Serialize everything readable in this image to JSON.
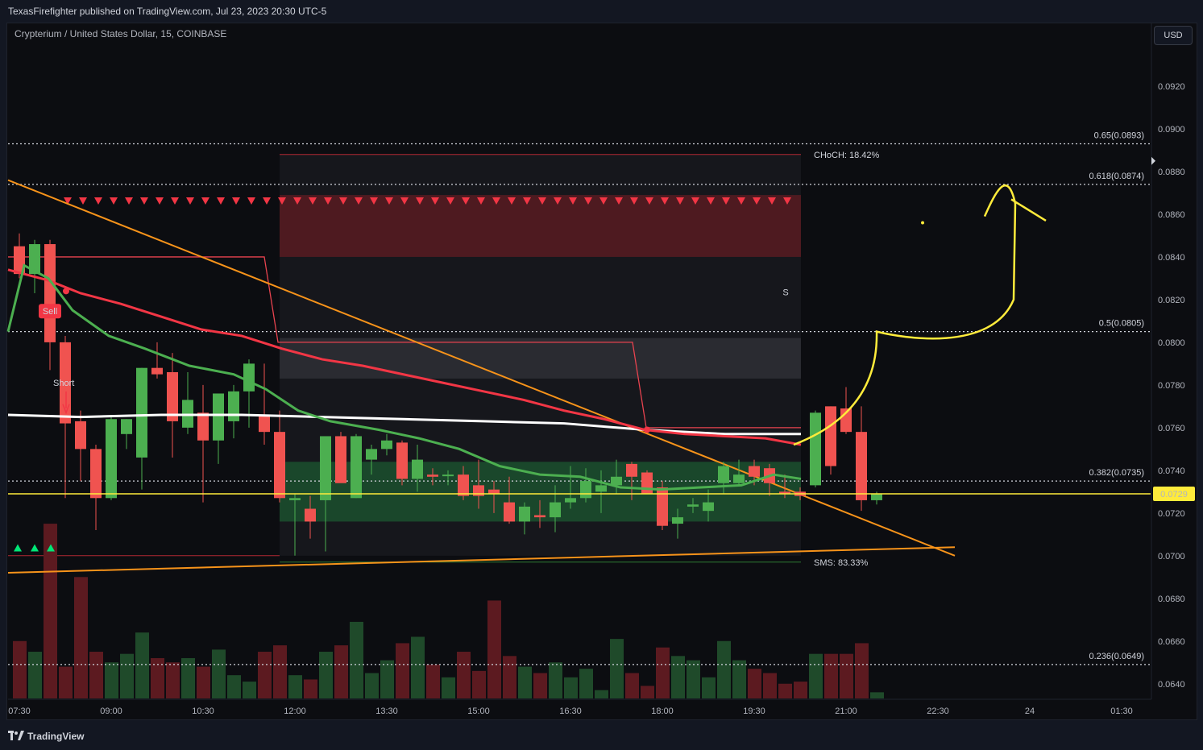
{
  "header": {
    "publisher": "TexasFirefighter published on TradingView.com, Jul 23, 2023 20:30 UTC-5",
    "symbol": "Crypterium / United States Dollar, 15, COINBASE",
    "currency_button": "USD"
  },
  "footer": {
    "brand": "TradingView"
  },
  "chart_data": {
    "type": "candlestick",
    "ylim": [
      0.0633,
      0.0938
    ],
    "y_ticks": [
      "0.0920",
      "0.0900",
      "0.0880",
      "0.0860",
      "0.0840",
      "0.0820",
      "0.0800",
      "0.0780",
      "0.0760",
      "0.0740",
      "0.0720",
      "0.0700",
      "0.0680",
      "0.0660",
      "0.0640"
    ],
    "x_ticks": [
      "07:30",
      "09:00",
      "10:30",
      "12:00",
      "13:30",
      "15:00",
      "16:30",
      "18:00",
      "19:30",
      "21:00",
      "22:30",
      "24",
      "01:30"
    ],
    "current_price": "0.0729",
    "fib_levels": [
      {
        "label": "0.65(0.0893)",
        "value": 0.0893
      },
      {
        "label": "0.618(0.0874)",
        "value": 0.0874
      },
      {
        "label": "0.5(0.0805)",
        "value": 0.0805
      },
      {
        "label": "0.382(0.0735)",
        "value": 0.0735
      },
      {
        "label": "0.236(0.0649)",
        "value": 0.0649
      }
    ],
    "annotations": {
      "choch": "CHoCH: 18.42%",
      "sms": "SMS: 83.33%",
      "sell": "Sell",
      "short": "Short",
      "s_marker": "S"
    },
    "candles": [
      [
        0.0845,
        0.0851,
        0.083,
        0.0832
      ],
      [
        0.0832,
        0.0848,
        0.0823,
        0.0846
      ],
      [
        0.0846,
        0.0848,
        0.0787,
        0.08
      ],
      [
        0.08,
        0.0803,
        0.0727,
        0.0762
      ],
      [
        0.0763,
        0.0768,
        0.0735,
        0.075
      ],
      [
        0.075,
        0.0752,
        0.0712,
        0.0727
      ],
      [
        0.0727,
        0.0766,
        0.0726,
        0.0764
      ],
      [
        0.0757,
        0.0764,
        0.075,
        0.0764
      ],
      [
        0.0746,
        0.0788,
        0.0731,
        0.0788
      ],
      [
        0.0788,
        0.08,
        0.0783,
        0.0785
      ],
      [
        0.0786,
        0.0795,
        0.0746,
        0.0763
      ],
      [
        0.076,
        0.0786,
        0.0757,
        0.0773
      ],
      [
        0.0767,
        0.078,
        0.0725,
        0.0754
      ],
      [
        0.0754,
        0.0776,
        0.0743,
        0.0776
      ],
      [
        0.0763,
        0.078,
        0.0755,
        0.0777
      ],
      [
        0.0777,
        0.0792,
        0.076,
        0.079
      ],
      [
        0.0766,
        0.079,
        0.0752,
        0.0758
      ],
      [
        0.0758,
        0.0768,
        0.0725,
        0.0727
      ],
      [
        0.0726,
        0.0729,
        0.07,
        0.0727
      ],
      [
        0.0722,
        0.0728,
        0.0708,
        0.0716
      ],
      [
        0.0726,
        0.0756,
        0.0702,
        0.0756
      ],
      [
        0.0756,
        0.0758,
        0.0735,
        0.0734
      ],
      [
        0.0727,
        0.0757,
        0.0727,
        0.0756
      ],
      [
        0.0745,
        0.0752,
        0.0738,
        0.075
      ],
      [
        0.075,
        0.0757,
        0.0747,
        0.0754
      ],
      [
        0.0753,
        0.0754,
        0.0733,
        0.0736
      ],
      [
        0.0736,
        0.0752,
        0.073,
        0.0745
      ],
      [
        0.0738,
        0.0741,
        0.0733,
        0.0737
      ],
      [
        0.0738,
        0.074,
        0.0733,
        0.0738
      ],
      [
        0.0738,
        0.0742,
        0.0726,
        0.0728
      ],
      [
        0.0733,
        0.0745,
        0.0722,
        0.0728
      ],
      [
        0.0731,
        0.0735,
        0.072,
        0.0729
      ],
      [
        0.0725,
        0.0737,
        0.0715,
        0.0716
      ],
      [
        0.0716,
        0.0725,
        0.071,
        0.0723
      ],
      [
        0.0719,
        0.0726,
        0.0713,
        0.0718
      ],
      [
        0.0718,
        0.0733,
        0.0711,
        0.0725
      ],
      [
        0.0725,
        0.0742,
        0.0722,
        0.0727
      ],
      [
        0.0727,
        0.0741,
        0.0725,
        0.0735
      ],
      [
        0.073,
        0.074,
        0.072,
        0.0733
      ],
      [
        0.0733,
        0.0745,
        0.0729,
        0.0737
      ],
      [
        0.0743,
        0.0744,
        0.0726,
        0.0737
      ],
      [
        0.0739,
        0.074,
        0.073,
        0.0729
      ],
      [
        0.0732,
        0.0735,
        0.0712,
        0.0714
      ],
      [
        0.0715,
        0.0722,
        0.0708,
        0.0718
      ],
      [
        0.0723,
        0.0727,
        0.072,
        0.0724
      ],
      [
        0.0721,
        0.0731,
        0.0716,
        0.0725
      ],
      [
        0.0734,
        0.0744,
        0.0729,
        0.0742
      ],
      [
        0.0734,
        0.0745,
        0.0733,
        0.0738
      ],
      [
        0.0742,
        0.0745,
        0.0733,
        0.0737
      ],
      [
        0.0741,
        0.0743,
        0.0728,
        0.0734
      ],
      [
        0.073,
        0.0738,
        0.0727,
        0.0729
      ],
      [
        0.073,
        0.0732,
        0.0726,
        0.0728
      ],
      [
        0.0733,
        0.0768,
        0.0732,
        0.0767
      ],
      [
        0.077,
        0.077,
        0.0738,
        0.0742
      ],
      [
        0.0769,
        0.0779,
        0.0757,
        0.0758
      ],
      [
        0.0758,
        0.077,
        0.0721,
        0.0726
      ],
      [
        0.0726,
        0.073,
        0.0724,
        0.0729
      ]
    ],
    "volumes": [
      28,
      40,
      33,
      45,
      29,
      37,
      33,
      36,
      29,
      33,
      29,
      30,
      29,
      27,
      29,
      33,
      29,
      27,
      36,
      28,
      40,
      33,
      33,
      30,
      29,
      27,
      29,
      28,
      29,
      27,
      29,
      30,
      29,
      27,
      29,
      28,
      29,
      27,
      29,
      28,
      29,
      27,
      29,
      28,
      29,
      27,
      29,
      28,
      29,
      30,
      29,
      27,
      29,
      28,
      29,
      27,
      29
    ],
    "volume_heights": [
      0.066,
      0.0655,
      0.0715,
      0.0648,
      0.069,
      0.0655,
      0.065,
      0.0654,
      0.0664,
      0.0652,
      0.065,
      0.0652,
      0.0648,
      0.0656,
      0.0644,
      0.0641,
      0.0655,
      0.0658,
      0.0644,
      0.0642,
      0.0655,
      0.0658,
      0.0669,
      0.0645,
      0.0651,
      0.0659,
      0.0662,
      0.0649,
      0.0643,
      0.0655,
      0.0646,
      0.0679,
      0.0653,
      0.0648,
      0.0645,
      0.065,
      0.0643,
      0.0647,
      0.0637,
      0.0661,
      0.0645,
      0.0639,
      0.0657,
      0.0653,
      0.0651,
      0.0643,
      0.066,
      0.0651,
      0.0647,
      0.0645,
      0.064,
      0.0641,
      0.0654,
      0.0654,
      0.0654,
      0.0659,
      0.0636
    ],
    "colors": {
      "up": "#4caf50",
      "down": "#f05350",
      "ema_red": "#f23645",
      "ema_green": "#4caf50",
      "ema_white": "#ffffff",
      "trend": "#f7931a",
      "yellow": "#ffeb3b",
      "zone_red": "#5d1b22",
      "zone_gray": "#2a2b31",
      "zone_green": "#1b4d2e"
    }
  }
}
